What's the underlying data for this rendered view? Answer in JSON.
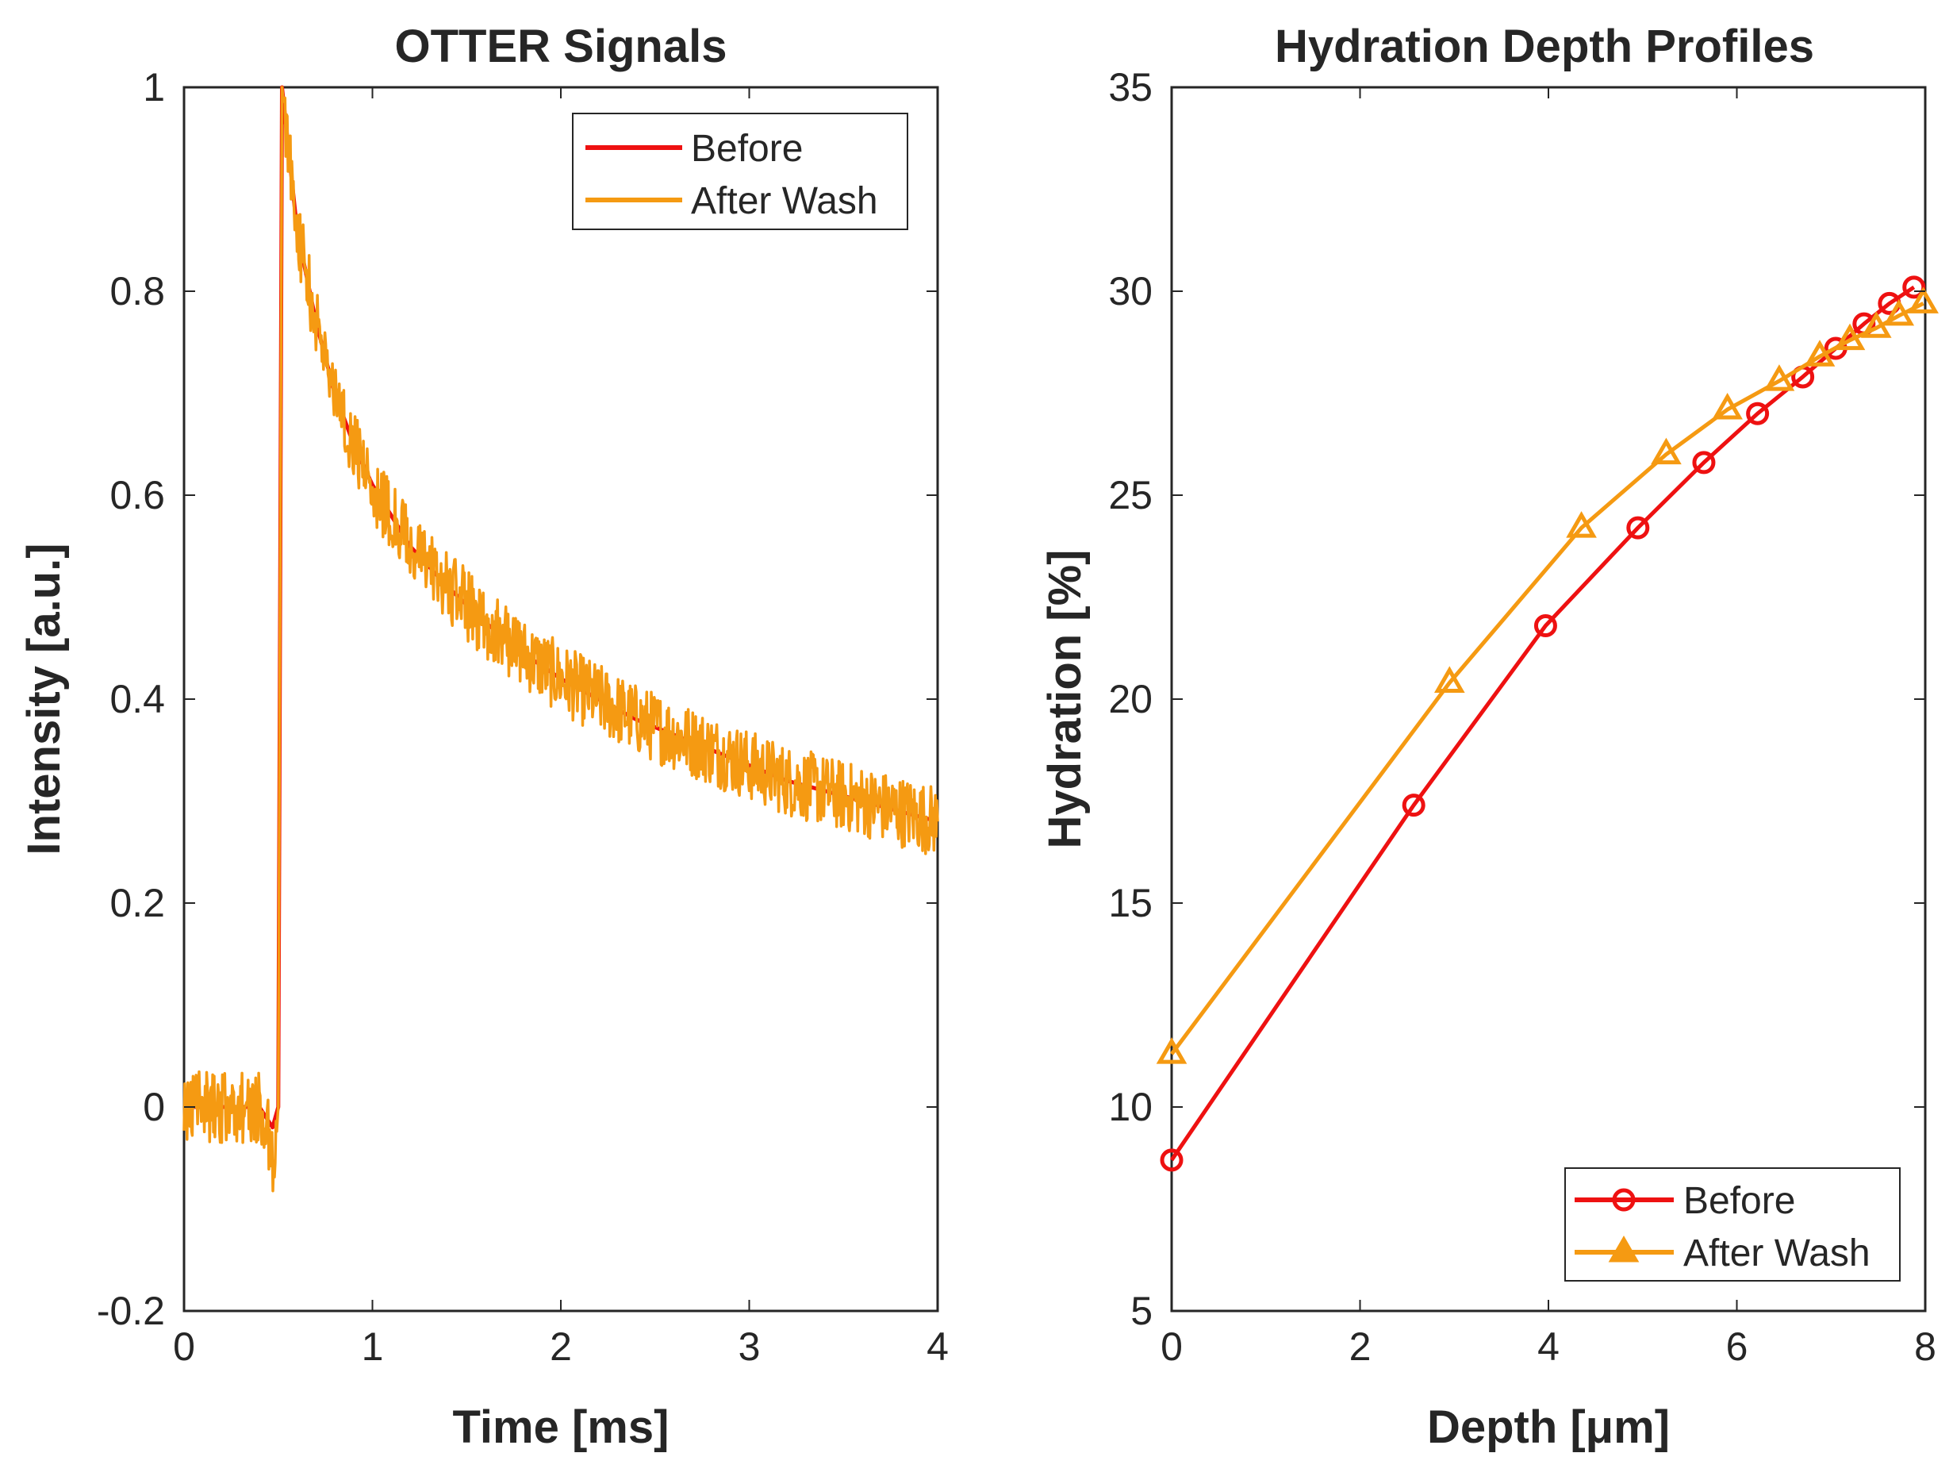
{
  "chart_data": [
    {
      "type": "line",
      "title": "OTTER Signals",
      "xlabel": "Time [ms]",
      "ylabel": "Intensity [a.u.]",
      "xlim": [
        0,
        4
      ],
      "ylim": [
        -0.2,
        1
      ],
      "xticks": [
        "0",
        "1",
        "2",
        "3",
        "4"
      ],
      "yticks": [
        "-0.2",
        "0",
        "0.2",
        "0.4",
        "0.6",
        "0.8",
        "1"
      ],
      "grid": false,
      "legend_position": "top-right",
      "series": [
        {
          "name": "Before",
          "color": "#ee1111",
          "x": [
            0,
            0.1,
            0.2,
            0.3,
            0.4,
            0.47,
            0.5,
            0.52,
            0.6,
            0.7,
            0.8,
            0.9,
            1.0,
            1.2,
            1.4,
            1.6,
            1.8,
            2.0,
            2.2,
            2.4,
            2.6,
            2.8,
            3.0,
            3.2,
            3.4,
            3.6,
            3.8,
            4.0
          ],
          "values": [
            0.0,
            0.0,
            0.0,
            0.0,
            0.0,
            -0.02,
            0.0,
            1.0,
            0.86,
            0.77,
            0.7,
            0.65,
            0.61,
            0.55,
            0.51,
            0.475,
            0.445,
            0.42,
            0.4,
            0.38,
            0.365,
            0.35,
            0.335,
            0.32,
            0.31,
            0.3,
            0.29,
            0.28
          ]
        },
        {
          "name": "After Wash",
          "color": "#f59a12",
          "x": [
            0,
            0.1,
            0.2,
            0.3,
            0.4,
            0.45,
            0.48,
            0.5,
            0.52,
            0.6,
            0.7,
            0.8,
            0.9,
            1.0,
            1.2,
            1.4,
            1.6,
            1.8,
            2.0,
            2.2,
            2.4,
            2.6,
            2.8,
            3.0,
            3.2,
            3.4,
            3.6,
            3.8,
            4.0
          ],
          "values": [
            0.0,
            0.0,
            0.0,
            0.0,
            0.0,
            -0.03,
            -0.06,
            0.0,
            1.0,
            0.86,
            0.77,
            0.7,
            0.65,
            0.61,
            0.55,
            0.51,
            0.475,
            0.445,
            0.42,
            0.4,
            0.38,
            0.365,
            0.35,
            0.335,
            0.32,
            0.31,
            0.3,
            0.29,
            0.28
          ],
          "noise_amplitude": 0.035
        }
      ]
    },
    {
      "type": "line",
      "title": "Hydration Depth Profiles",
      "xlabel": "Depth  [μm]",
      "ylabel": "Hydration [%]",
      "xlim": [
        0,
        8
      ],
      "ylim": [
        5,
        35
      ],
      "xticks": [
        "0",
        "2",
        "4",
        "6",
        "8"
      ],
      "yticks": [
        "5",
        "10",
        "15",
        "20",
        "25",
        "30",
        "35"
      ],
      "grid": false,
      "legend_position": "bottom-right",
      "series": [
        {
          "name": "Before",
          "color": "#ee1111",
          "marker": "circle",
          "x": [
            0,
            2.57,
            3.97,
            4.95,
            5.65,
            6.22,
            6.7,
            7.05,
            7.35,
            7.62,
            7.88
          ],
          "values": [
            8.7,
            17.4,
            21.8,
            24.2,
            25.8,
            27.0,
            27.9,
            28.6,
            29.2,
            29.7,
            30.1
          ]
        },
        {
          "name": "After Wash",
          "color": "#f59a12",
          "marker": "triangle",
          "x": [
            0,
            2.95,
            4.35,
            5.25,
            5.9,
            6.45,
            6.88,
            7.2,
            7.48,
            7.72,
            7.98
          ],
          "values": [
            11.3,
            20.4,
            24.2,
            26.0,
            27.1,
            27.8,
            28.4,
            28.8,
            29.1,
            29.4,
            29.7
          ]
        }
      ]
    }
  ]
}
